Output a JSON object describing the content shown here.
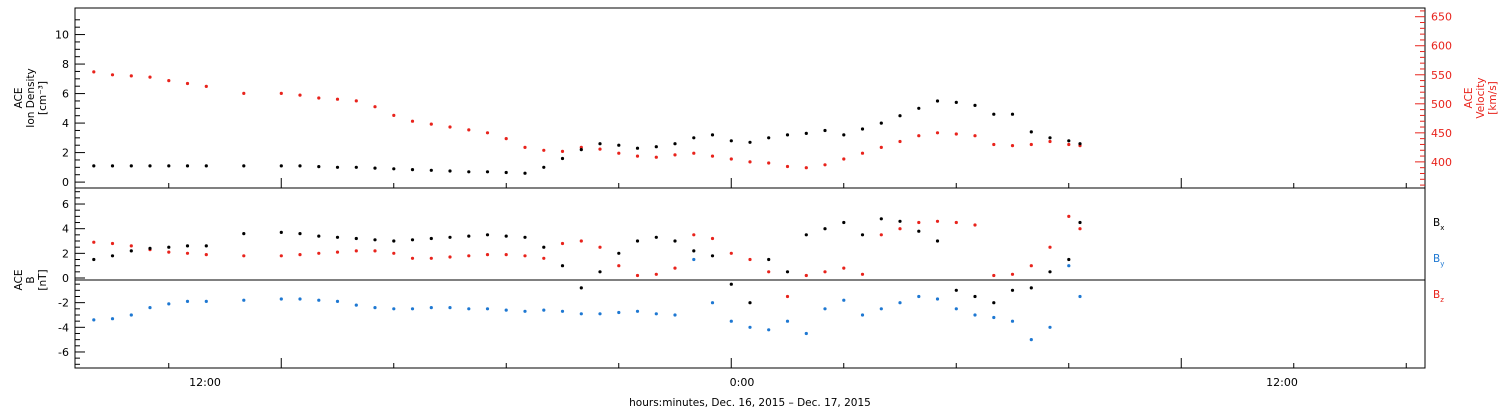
{
  "xlabel": "hours:minutes, Dec. 16, 2015 – Dec. 17, 2015",
  "x_ticks": [
    "12:00",
    "0:00",
    "12:00"
  ],
  "colors": {
    "black": "#000000",
    "red": "#e8231c",
    "blue": "#1e78d2"
  },
  "chart_data": [
    {
      "type": "scatter",
      "panel": "top",
      "x_unit": "hours from 2015-12-16 00:00 UT",
      "xlim": [
        6.5,
        42.5
      ],
      "ylabel_left": [
        "ACE",
        "Ion Density",
        "[cm⁻³]"
      ],
      "ylabel_right": [
        "ACE",
        "Velocity",
        "[km/s]"
      ],
      "y_left_ticks": [
        "0",
        "2",
        "4",
        "6",
        "8",
        "10"
      ],
      "y_right_ticks": [
        "400",
        "450",
        "500",
        "550",
        "600",
        "650"
      ],
      "ylim_left": [
        -0.4,
        11.8
      ],
      "ylim_right": [
        355,
        665
      ],
      "grid": false,
      "series": [
        {
          "name": "Ion Density",
          "color": "#000000",
          "axis": "left",
          "x": [
            7.0,
            7.5,
            8.0,
            8.5,
            9.0,
            9.5,
            10.0,
            11.0,
            12.0,
            12.5,
            13.0,
            13.5,
            14.0,
            14.5,
            15.0,
            15.5,
            16.0,
            16.5,
            17.0,
            17.5,
            18.0,
            18.5,
            19.0,
            19.5,
            20.0,
            20.5,
            21.0,
            21.5,
            22.0,
            22.5,
            23.0,
            23.5,
            24.0,
            24.5,
            25.0,
            25.5,
            26.0,
            26.5,
            27.0,
            27.5,
            28.0,
            28.5,
            29.0,
            29.5,
            30.0,
            30.5,
            31.0,
            31.5,
            32.0,
            32.5,
            33.0,
            33.3
          ],
          "y": [
            1.1,
            1.1,
            1.1,
            1.1,
            1.1,
            1.1,
            1.1,
            1.1,
            1.1,
            1.1,
            1.05,
            1.0,
            1.0,
            0.95,
            0.9,
            0.85,
            0.8,
            0.75,
            0.7,
            0.7,
            0.65,
            0.6,
            1.0,
            1.6,
            2.2,
            2.6,
            2.5,
            2.3,
            2.4,
            2.6,
            3.0,
            3.2,
            2.8,
            2.7,
            3.0,
            3.2,
            3.3,
            3.5,
            3.2,
            3.6,
            4.0,
            4.5,
            5.0,
            5.5,
            5.4,
            5.2,
            4.6,
            4.6,
            3.4,
            3.0,
            2.8,
            2.6
          ]
        },
        {
          "name": "Velocity",
          "color": "#e8231c",
          "axis": "right",
          "x": [
            7.0,
            7.5,
            8.0,
            8.5,
            9.0,
            9.5,
            10.0,
            11.0,
            12.0,
            12.5,
            13.0,
            13.5,
            14.0,
            14.5,
            15.0,
            15.5,
            16.0,
            16.5,
            17.0,
            17.5,
            18.0,
            18.5,
            19.0,
            19.5,
            20.0,
            20.5,
            21.0,
            21.5,
            22.0,
            22.5,
            23.0,
            23.5,
            24.0,
            24.5,
            25.0,
            25.5,
            26.0,
            26.5,
            27.0,
            27.5,
            28.0,
            28.5,
            29.0,
            29.5,
            30.0,
            30.5,
            31.0,
            31.5,
            32.0,
            32.5,
            33.0,
            33.3
          ],
          "y": [
            555,
            550,
            548,
            546,
            540,
            535,
            530,
            518,
            518,
            515,
            510,
            508,
            505,
            495,
            480,
            470,
            465,
            460,
            455,
            450,
            440,
            425,
            420,
            418,
            425,
            422,
            415,
            410,
            408,
            412,
            415,
            410,
            405,
            400,
            398,
            392,
            390,
            395,
            405,
            415,
            425,
            435,
            445,
            450,
            448,
            445,
            430,
            428,
            430,
            435,
            430,
            428
          ]
        }
      ]
    },
    {
      "type": "scatter",
      "panel": "bottom",
      "x_unit": "hours from 2015-12-16 00:00 UT",
      "xlim": [
        6.5,
        42.5
      ],
      "ylabel_left": [
        "ACE",
        "B",
        "[nT]"
      ],
      "y_left_ticks": [
        "-6",
        "-4",
        "-2",
        "0",
        "2",
        "4",
        "6"
      ],
      "ylim": [
        -7.3,
        7.3
      ],
      "zero_line": true,
      "grid": false,
      "legend_placement": "right",
      "series": [
        {
          "name": "Bx",
          "color": "#000000",
          "x": [
            7.0,
            7.5,
            8.0,
            8.5,
            9.0,
            9.5,
            10.0,
            11.0,
            12.0,
            12.5,
            13.0,
            13.5,
            14.0,
            14.5,
            15.0,
            15.5,
            16.0,
            16.5,
            17.0,
            17.5,
            18.0,
            18.5,
            19.0,
            19.5,
            20.0,
            20.5,
            21.0,
            21.5,
            22.0,
            22.5,
            23.0,
            23.5,
            24.0,
            24.5,
            25.0,
            25.5,
            26.0,
            26.5,
            27.0,
            27.5,
            28.0,
            28.5,
            29.0,
            29.5,
            30.0,
            30.5,
            31.0,
            31.5,
            32.0,
            32.5,
            33.0,
            33.3
          ],
          "y": [
            1.5,
            1.8,
            2.2,
            2.4,
            2.5,
            2.6,
            2.6,
            3.6,
            3.7,
            3.6,
            3.4,
            3.3,
            3.2,
            3.1,
            3.0,
            3.1,
            3.2,
            3.3,
            3.4,
            3.5,
            3.4,
            3.3,
            2.5,
            1.0,
            -0.8,
            0.5,
            2.0,
            3.0,
            3.3,
            3.0,
            2.2,
            1.8,
            -0.5,
            -2.0,
            1.5,
            0.5,
            3.5,
            4.0,
            4.5,
            3.5,
            4.8,
            4.6,
            3.8,
            3.0,
            -1.0,
            -1.5,
            -2.0,
            -1.0,
            -0.8,
            0.5,
            1.5,
            4.5
          ]
        },
        {
          "name": "By",
          "color": "#1e78d2",
          "x": [
            7.0,
            7.5,
            8.0,
            8.5,
            9.0,
            9.5,
            10.0,
            11.0,
            12.0,
            12.5,
            13.0,
            13.5,
            14.0,
            14.5,
            15.0,
            15.5,
            16.0,
            16.5,
            17.0,
            17.5,
            18.0,
            18.5,
            19.0,
            19.5,
            20.0,
            20.5,
            21.0,
            21.5,
            22.0,
            22.5,
            23.0,
            23.5,
            24.0,
            24.5,
            25.0,
            25.5,
            26.0,
            26.5,
            27.0,
            27.5,
            28.0,
            28.5,
            29.0,
            29.5,
            30.0,
            30.5,
            31.0,
            31.5,
            32.0,
            32.5,
            33.0,
            33.3
          ],
          "y": [
            -3.4,
            -3.3,
            -3.0,
            -2.4,
            -2.1,
            -1.9,
            -1.9,
            -1.8,
            -1.7,
            -1.7,
            -1.8,
            -1.9,
            -2.2,
            -2.4,
            -2.5,
            -2.5,
            -2.4,
            -2.4,
            -2.5,
            -2.5,
            -2.6,
            -2.7,
            -2.6,
            -2.7,
            -2.9,
            -2.9,
            -2.8,
            -2.7,
            -2.9,
            -3.0,
            1.5,
            -2.0,
            -3.5,
            -4.0,
            -4.2,
            -3.5,
            -4.5,
            -2.5,
            -1.8,
            -3.0,
            -2.5,
            -2.0,
            -1.5,
            -1.7,
            -2.5,
            -3.0,
            -3.2,
            -3.5,
            -5.0,
            -4.0,
            1.0,
            -1.5
          ]
        },
        {
          "name": "Bz",
          "color": "#e8231c",
          "x": [
            7.0,
            7.5,
            8.0,
            8.5,
            9.0,
            9.5,
            10.0,
            11.0,
            12.0,
            12.5,
            13.0,
            13.5,
            14.0,
            14.5,
            15.0,
            15.5,
            16.0,
            16.5,
            17.0,
            17.5,
            18.0,
            18.5,
            19.0,
            19.5,
            20.0,
            20.5,
            21.0,
            21.5,
            22.0,
            22.5,
            23.0,
            23.5,
            24.0,
            24.5,
            25.0,
            25.5,
            26.0,
            26.5,
            27.0,
            27.5,
            28.0,
            28.5,
            29.0,
            29.5,
            30.0,
            30.5,
            31.0,
            31.5,
            32.0,
            32.5,
            33.0,
            33.3
          ],
          "y": [
            2.9,
            2.8,
            2.6,
            2.3,
            2.1,
            2.0,
            1.9,
            1.8,
            1.8,
            1.9,
            2.0,
            2.1,
            2.2,
            2.2,
            2.0,
            1.6,
            1.6,
            1.7,
            1.8,
            1.9,
            1.9,
            1.8,
            1.6,
            2.8,
            3.0,
            2.5,
            1.0,
            0.2,
            0.3,
            0.8,
            3.5,
            3.2,
            2.0,
            1.5,
            0.5,
            -1.5,
            0.2,
            0.5,
            0.8,
            0.3,
            3.5,
            4.0,
            4.5,
            4.6,
            4.5,
            4.3,
            0.2,
            0.3,
            1.0,
            2.5,
            5.0,
            4.0
          ]
        }
      ]
    }
  ],
  "legend": [
    "B",
    "B",
    "B"
  ],
  "legend_subs": [
    "x",
    "y",
    "z"
  ]
}
